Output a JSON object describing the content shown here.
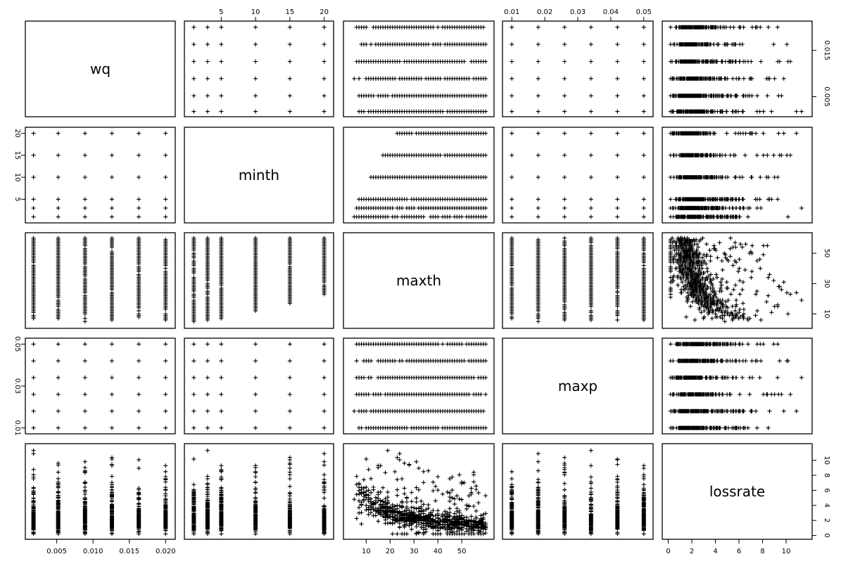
{
  "chart_data": {
    "type": "scatter",
    "variables": [
      "wq",
      "minth",
      "maxth",
      "maxp",
      "lossrate"
    ],
    "axes": {
      "wq": {
        "range": [
          0.0015,
          0.0205
        ],
        "levels": [
          0.0018,
          0.0052,
          0.0089,
          0.0126,
          0.0163,
          0.02
        ],
        "ticks": [
          0.005,
          0.01,
          0.015,
          0.02
        ],
        "tick_labels": [
          "0.005",
          "0.010",
          "0.015",
          "0.020"
        ]
      },
      "minth": {
        "range": [
          0.5,
          20.5
        ],
        "levels": [
          1,
          3,
          5,
          10,
          15,
          20
        ],
        "ticks": [
          5,
          10,
          15,
          20
        ],
        "tick_labels": [
          "5",
          "10",
          "15",
          "20"
        ]
      },
      "maxth": {
        "range": [
          3,
          61
        ],
        "ticks": [
          10,
          20,
          30,
          40,
          50
        ],
        "ticks_right": [
          10,
          30,
          50
        ],
        "tick_labels": [
          "10",
          "20",
          "30",
          "40",
          "50"
        ],
        "tick_labels_right": [
          "10",
          "30",
          "50"
        ]
      },
      "maxp": {
        "range": [
          0.009,
          0.051
        ],
        "levels": [
          0.01,
          0.018,
          0.026,
          0.034,
          0.042,
          0.05
        ],
        "ticks": [
          0.01,
          0.02,
          0.03,
          0.04,
          0.05
        ],
        "ticks_left": [
          0.01,
          0.03,
          0.05
        ],
        "tick_labels": [
          "0.01",
          "0.02",
          "0.03",
          "0.04",
          "0.05"
        ],
        "tick_labels_left": [
          "0.01",
          "0.03",
          "0.05"
        ]
      },
      "lossrate": {
        "range": [
          0,
          11.7
        ],
        "ticks": [
          0,
          2,
          4,
          6,
          8,
          10
        ],
        "tick_labels": [
          "0",
          "2",
          "4",
          "6",
          "8",
          "10"
        ]
      }
    },
    "wq_ticks_right": [
      0.005,
      0.015
    ],
    "wq_tick_labels_right": [
      "0.005",
      "0.015"
    ],
    "generation": {
      "seed": 7,
      "points": 900
    },
    "grid": false,
    "legend": "none"
  }
}
